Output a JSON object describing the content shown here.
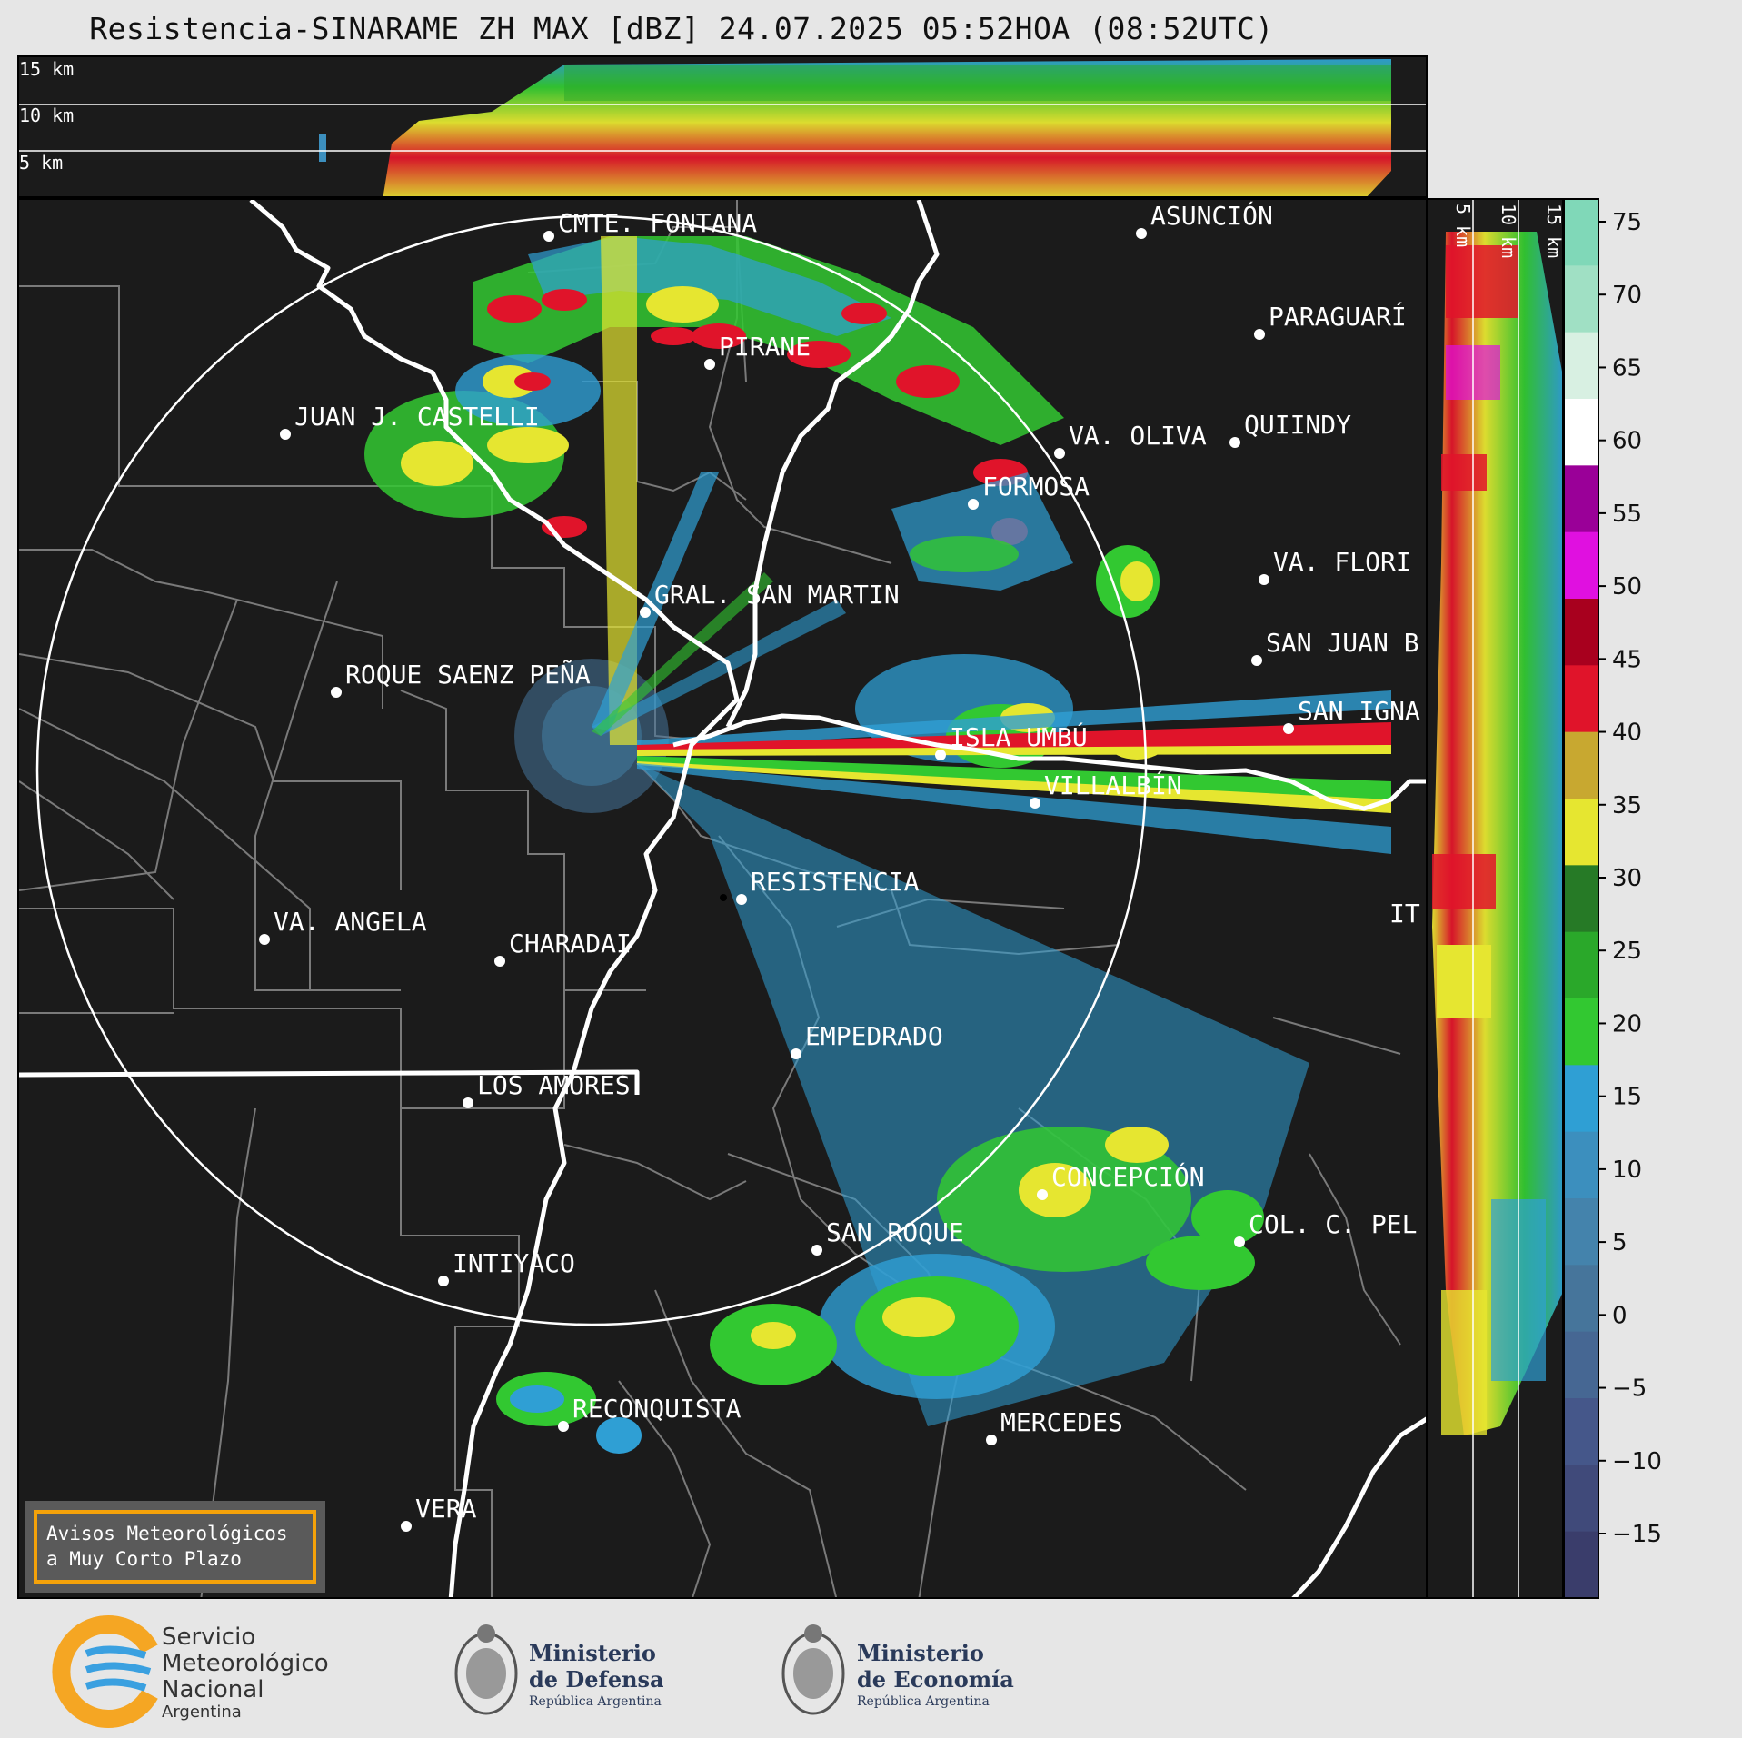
{
  "title": "Resistencia-SINARAME ZH MAX [dBZ] 24.07.2025 05:52HOA (08:52UTC)",
  "top_panel": {
    "height_labels": [
      "15 km",
      "10 km",
      "5 km"
    ]
  },
  "side_panel": {
    "height_labels": [
      "5 km",
      "10 km",
      "15 km"
    ]
  },
  "cities": [
    {
      "name": "CMTE. FONTANA",
      "id": "cmte-fontana"
    },
    {
      "name": "ASUNCIÓN",
      "id": "asuncion"
    },
    {
      "name": "PARAGUARÍ",
      "id": "paraguari"
    },
    {
      "name": "PIRANE",
      "id": "pirane"
    },
    {
      "name": "JUAN J. CASTELLI",
      "id": "juan-j-castelli"
    },
    {
      "name": "VA. OLIVA",
      "id": "va-oliva"
    },
    {
      "name": "QUIINDY",
      "id": "quiindy"
    },
    {
      "name": "FORMOSA",
      "id": "formosa"
    },
    {
      "name": "VA. FLORI",
      "id": "va-flori"
    },
    {
      "name": "GRAL. SAN MARTIN",
      "id": "gral-san-martin"
    },
    {
      "name": "SAN JUAN B",
      "id": "san-juan-b"
    },
    {
      "name": "ROQUE SAENZ PEÑA",
      "id": "roque-saenz-pena"
    },
    {
      "name": "SAN IGNA",
      "id": "san-igna"
    },
    {
      "name": "ISLA UMBÚ",
      "id": "isla-umbu"
    },
    {
      "name": "VILLALBÍN",
      "id": "villalbin"
    },
    {
      "name": "RESISTENCIA",
      "id": "resistencia"
    },
    {
      "name": "VA. ANGELA",
      "id": "va-angela"
    },
    {
      "name": "CHARADAI",
      "id": "charadai"
    },
    {
      "name": "IT",
      "id": "it"
    },
    {
      "name": "EMPEDRADO",
      "id": "empedrado"
    },
    {
      "name": "LOS AMORES",
      "id": "los-amores"
    },
    {
      "name": "CONCEPCIÓN",
      "id": "concepcion"
    },
    {
      "name": "COL. C. PEL",
      "id": "col-c-pel"
    },
    {
      "name": "SAN ROQUE",
      "id": "san-roque"
    },
    {
      "name": "INTIYACO",
      "id": "intiyaco"
    },
    {
      "name": "RECONQUISTA",
      "id": "reconquista"
    },
    {
      "name": "MERCEDES",
      "id": "mercedes"
    },
    {
      "name": "VERA",
      "id": "vera"
    }
  ],
  "colorbar": {
    "ticks": [
      "75",
      "70",
      "65",
      "60",
      "55",
      "50",
      "45",
      "40",
      "35",
      "30",
      "25",
      "20",
      "15",
      "10",
      "5",
      "0",
      "−5",
      "−10",
      "−15"
    ],
    "colors": {
      "c_m20": "#3a3d6b",
      "c_m15": "#404a7a",
      "c_m10": "#45578a",
      "c_m5": "#466793",
      "c_0": "#46759b",
      "c_5": "#4483ac",
      "c_10": "#3c8fbe",
      "c_15": "#2f9fd4",
      "c_20": "#32c831",
      "c_25": "#2aa82a",
      "c_30": "#267a26",
      "c_35": "#e6e630",
      "c_40": "#c8a830",
      "c_45": "#e0142a",
      "c_50": "#a8001e",
      "c_55": "#e010e0",
      "c_60": "#9a0098",
      "c_65": "#ffffff",
      "c_70": "#d8f0e2",
      "c_75": "#a0e0c4",
      "c_80": "#80d8b8"
    }
  },
  "warning_box": {
    "line1": "Avisos Meteorológicos",
    "line2": "a Muy Corto Plazo"
  },
  "footer": {
    "smn": {
      "line1": "Servicio",
      "line2": "Meteorológico",
      "line3": "Nacional",
      "line4": "Argentina"
    },
    "defensa": {
      "line1": "Ministerio",
      "line2": "de Defensa",
      "line3": "República Argentina"
    },
    "economia": {
      "line1": "Ministerio",
      "line2": "de Economía",
      "line3": "República Argentina"
    }
  }
}
